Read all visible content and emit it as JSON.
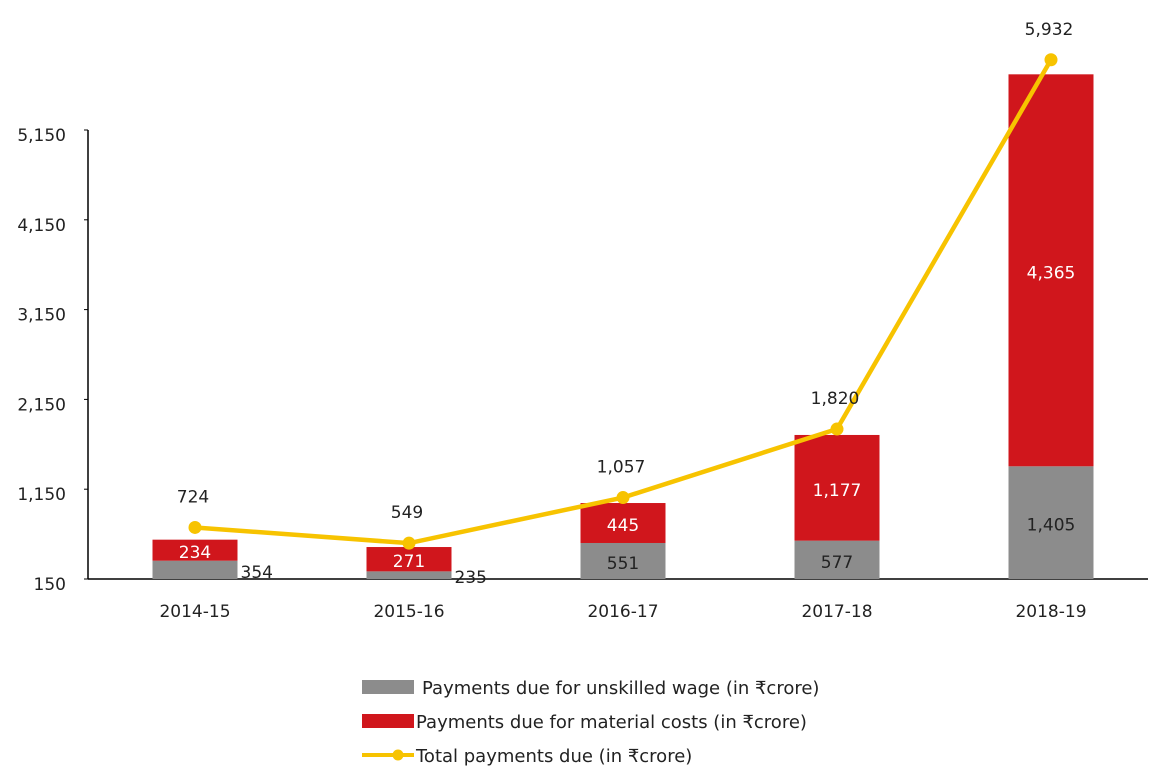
{
  "chart_data": {
    "type": "bar",
    "categories": [
      "2014-15",
      "2015-16",
      "2016-17",
      "2017-18",
      "2018-19"
    ],
    "series": [
      {
        "name": "Payments due for unskilled wage (in ₹crore)",
        "color": "#8c8c8c",
        "values": [
          354,
          235,
          551,
          577,
          1405
        ],
        "value_labels": [
          "354",
          "235",
          "551",
          "577",
          "1,405"
        ]
      },
      {
        "name": "Payments due for material costs (in ₹crore)",
        "color": "#d0161c",
        "values": [
          234,
          271,
          445,
          1177,
          4365
        ],
        "value_labels": [
          "234",
          "271",
          "445",
          "1,177",
          "4,365"
        ]
      },
      {
        "name": "Total payments due (in ₹crore)",
        "color": "#f7c300",
        "type": "line",
        "values": [
          724,
          549,
          1057,
          1820,
          5932
        ],
        "value_labels": [
          "724",
          "549",
          "1,057",
          "1,820",
          "5,932"
        ]
      }
    ],
    "ylim": [
      150,
      5150
    ],
    "yticks": [
      150,
      {
        "value": 1150,
        "label": "1,150"
      },
      {
        "value": 2150,
        "label": "2,150"
      },
      {
        "value": 3150,
        "label": "3,150"
      },
      {
        "value": 4150,
        "label": "4,150"
      },
      {
        "value": 5150,
        "label": "5,150"
      }
    ]
  }
}
